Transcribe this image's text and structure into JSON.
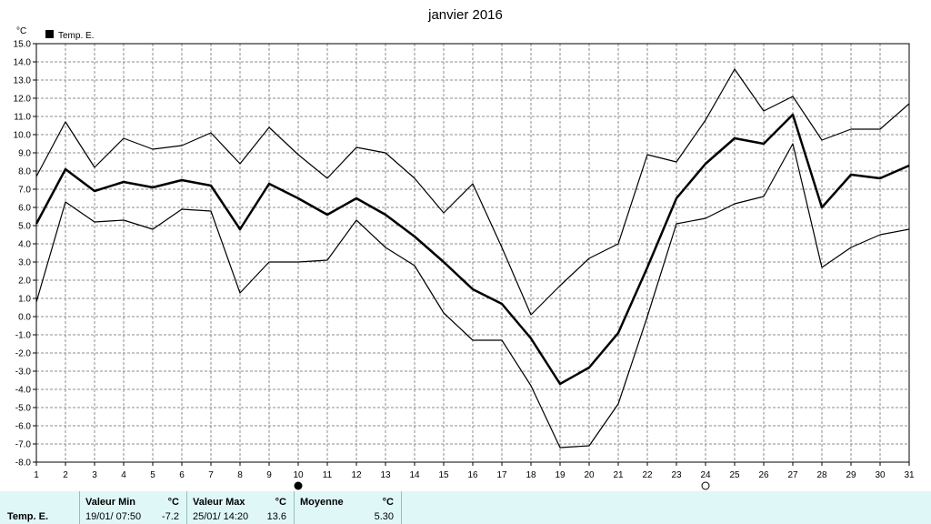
{
  "chart_data": {
    "type": "line",
    "title": "janvier 2016",
    "ylabel": "°C",
    "ylim": [
      -8.0,
      15.0
    ],
    "x": [
      1,
      2,
      3,
      4,
      5,
      6,
      7,
      8,
      9,
      10,
      11,
      12,
      13,
      14,
      15,
      16,
      17,
      18,
      19,
      20,
      21,
      22,
      23,
      24,
      25,
      26,
      27,
      28,
      29,
      30,
      31
    ],
    "yticks": [
      "15.0",
      "14.0",
      "13.0",
      "12.0",
      "11.0",
      "10.0",
      "9.0",
      "8.0",
      "7.0",
      "6.0",
      "5.0",
      "4.0",
      "3.0",
      "2.0",
      "1.0",
      "0.0",
      "-1.0",
      "-2.0",
      "-3.0",
      "-4.0",
      "-5.0",
      "-6.0",
      "-7.0",
      "-8.0"
    ],
    "xticks": [
      "1",
      "2",
      "3",
      "4",
      "5",
      "6",
      "7",
      "8",
      "9",
      "10",
      "11",
      "12",
      "13",
      "14",
      "15",
      "16",
      "17",
      "18",
      "19",
      "20",
      "21",
      "22",
      "23",
      "24",
      "25",
      "26",
      "27",
      "28",
      "29",
      "30",
      "31"
    ],
    "grid": true,
    "legend": "top-left",
    "series": [
      {
        "name": "Temp. E.",
        "role": "mean",
        "values": [
          5.1,
          8.1,
          6.9,
          7.4,
          7.1,
          7.5,
          7.2,
          4.8,
          7.3,
          6.5,
          5.6,
          6.5,
          5.6,
          4.4,
          3.0,
          1.5,
          0.7,
          -1.2,
          -3.7,
          -2.8,
          -0.9,
          2.7,
          6.5,
          8.4,
          9.8,
          9.5,
          11.1,
          6.0,
          7.8,
          7.6,
          8.3
        ]
      },
      {
        "role": "max",
        "values": [
          7.7,
          10.7,
          8.2,
          9.8,
          9.2,
          9.4,
          10.1,
          8.4,
          10.4,
          8.9,
          7.6,
          9.3,
          9.0,
          7.6,
          5.7,
          7.3,
          3.8,
          0.1,
          1.7,
          3.2,
          4.0,
          8.9,
          8.5,
          10.8,
          13.6,
          11.3,
          12.1,
          9.7,
          10.3,
          10.3,
          11.7
        ]
      },
      {
        "role": "min",
        "values": [
          0.8,
          6.3,
          5.2,
          5.3,
          4.8,
          5.9,
          5.8,
          1.3,
          3.0,
          3.0,
          3.1,
          5.3,
          3.8,
          2.8,
          0.2,
          -1.3,
          -1.3,
          -3.8,
          -7.2,
          -7.1,
          -4.8,
          0.0,
          5.1,
          5.4,
          6.2,
          6.6,
          9.5,
          2.7,
          3.8,
          4.5,
          4.8
        ]
      }
    ],
    "colors": {
      "lines": "#000000",
      "grid": "#8c8c8c",
      "panel": "#dff7f7"
    },
    "markers": [
      {
        "day": 10,
        "icon": "filled-circle-icon"
      },
      {
        "day": 24,
        "icon": "open-circle-icon"
      }
    ]
  },
  "stats": {
    "series_name": "Temp. E.",
    "min_label": "Valeur Min",
    "min_unit": "°C",
    "min_date": "19/01/  07:50",
    "min_value": "-7.2",
    "max_label": "Valeur Max",
    "max_unit": "°C",
    "max_date": "25/01/  14:20",
    "max_value": "13.6",
    "mean_label": "Moyenne",
    "mean_unit": "°C",
    "mean_value": "5.30"
  }
}
